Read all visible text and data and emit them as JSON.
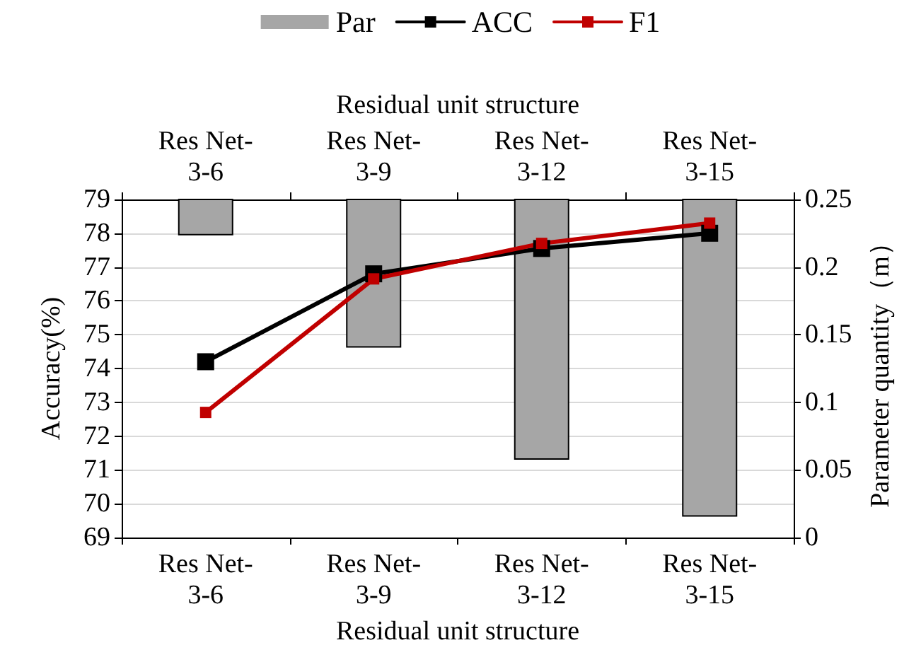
{
  "chart_data": {
    "type": "line",
    "xlabel": "Residual unit structure",
    "x2label": "Residual unit structure",
    "ylabel": "Accuracy(%)",
    "y2label": "Parameter quantity（m）",
    "categories": [
      "Res Net-3-6",
      "Res Net-3-9",
      "Res Net-3-12",
      "Res Net-3-15"
    ],
    "series": [
      {
        "name": "Par",
        "type": "bar",
        "axis": "y2",
        "color": "#a6a6a6",
        "base": [
          0.25,
          0.25,
          0.25,
          0.25
        ],
        "values": [
          -0.026,
          -0.109,
          -0.192,
          -0.234
        ]
      },
      {
        "name": "ACC",
        "color": "#000000",
        "values": [
          74.2,
          76.8,
          77.55,
          78.0
        ]
      },
      {
        "name": "F1",
        "color": "#c00000",
        "values": [
          72.7,
          76.65,
          77.7,
          78.3
        ]
      }
    ],
    "ylim": [
      69,
      79
    ],
    "yticks": [
      69,
      70,
      71,
      72,
      73,
      74,
      75,
      76,
      77,
      78,
      79
    ],
    "y2lim": [
      0,
      0.25
    ],
    "y2ticks": [
      0,
      0.05,
      0.1,
      0.15,
      0.2,
      0.25
    ],
    "grid": "y",
    "legend": "top",
    "marker": "square",
    "line_style": "solid"
  }
}
